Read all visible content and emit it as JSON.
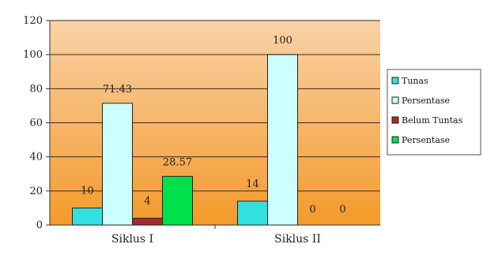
{
  "chart_data": {
    "type": "bar",
    "categories": [
      "Siklus I",
      "Siklus II"
    ],
    "series": [
      {
        "name": "Tunas",
        "values": [
          10,
          14
        ],
        "labels": [
          "10",
          "14"
        ],
        "color": "#33e0e0"
      },
      {
        "name": "Persentase",
        "values": [
          71.43,
          100
        ],
        "labels": [
          "71.43",
          "100"
        ],
        "color": "#ccffff"
      },
      {
        "name": "Belum Tuntas",
        "values": [
          4,
          0
        ],
        "labels": [
          "4",
          "0"
        ],
        "color": "#a52a2a"
      },
      {
        "name": "Persentase",
        "values": [
          28.57,
          0
        ],
        "labels": [
          "28.57",
          "0"
        ],
        "color": "#00e04a"
      }
    ],
    "y_ticks": [
      "0",
      "20",
      "40",
      "60",
      "80",
      "100",
      "120"
    ],
    "ylim": [
      0,
      120
    ],
    "grid": true,
    "legend_position": "right",
    "colors": {
      "plot_top": "#f9d2a8",
      "plot_bottom": "#f49a2a",
      "grid": "#3a2a20",
      "bar_stroke": "#222222"
    }
  }
}
